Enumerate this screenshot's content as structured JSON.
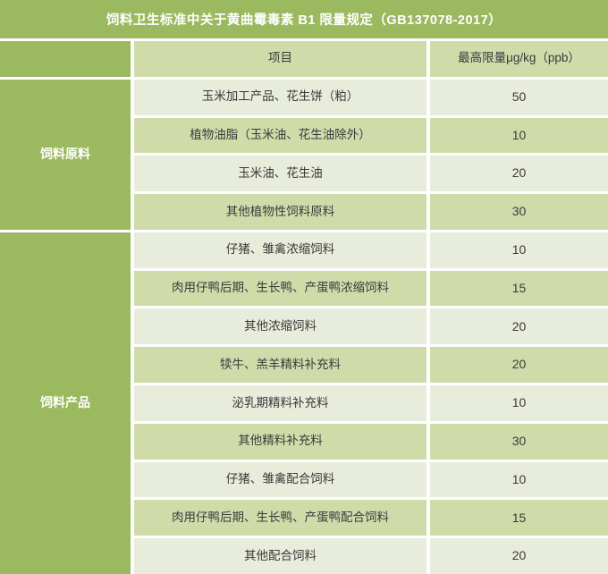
{
  "chart_data": {
    "type": "table",
    "title": "饲料卫生标准中关于黄曲霉毒素 B1 限量规定（GB137078-2017）",
    "header": {
      "item": "项目",
      "limit": "最高限量μg/kg（ppb）"
    },
    "groups": [
      {
        "label": "饲料原料",
        "row_count": 4
      },
      {
        "label": "饲料产品",
        "row_count": 9
      }
    ],
    "rows": [
      {
        "group": "饲料原料",
        "item": "玉米加工产品、花生饼（粕）",
        "value": "50"
      },
      {
        "group": "饲料原料",
        "item": "植物油脂（玉米油、花生油除外）",
        "value": "10"
      },
      {
        "group": "饲料原料",
        "item": "玉米油、花生油",
        "value": "20"
      },
      {
        "group": "饲料原料",
        "item": "其他植物性饲料原料",
        "value": "30"
      },
      {
        "group": "饲料产品",
        "item": "仔猪、雏禽浓缩饲料",
        "value": "10"
      },
      {
        "group": "饲料产品",
        "item": "肉用仔鸭后期、生长鸭、产蛋鸭浓缩饲料",
        "value": "15"
      },
      {
        "group": "饲料产品",
        "item": "其他浓缩饲料",
        "value": "20"
      },
      {
        "group": "饲料产品",
        "item": "犊牛、羔羊精料补充料",
        "value": "20"
      },
      {
        "group": "饲料产品",
        "item": "泌乳期精料补充料",
        "value": "10"
      },
      {
        "group": "饲料产品",
        "item": "其他精料补充料",
        "value": "30"
      },
      {
        "group": "饲料产品",
        "item": "仔猪、雏禽配合饲料",
        "value": "10"
      },
      {
        "group": "饲料产品",
        "item": "肉用仔鸭后期、生长鸭、产蛋鸭配合饲料",
        "value": "15"
      },
      {
        "group": "饲料产品",
        "item": "其他配合饲料",
        "value": "20"
      }
    ]
  },
  "colors": {
    "accent_green": "#9bb95f",
    "row_light": "#e8ecda",
    "row_medium": "#cfdcaa",
    "text_dark": "#3a3a3a",
    "text_on_green": "#ffffff",
    "gutter": "#ffffff"
  }
}
